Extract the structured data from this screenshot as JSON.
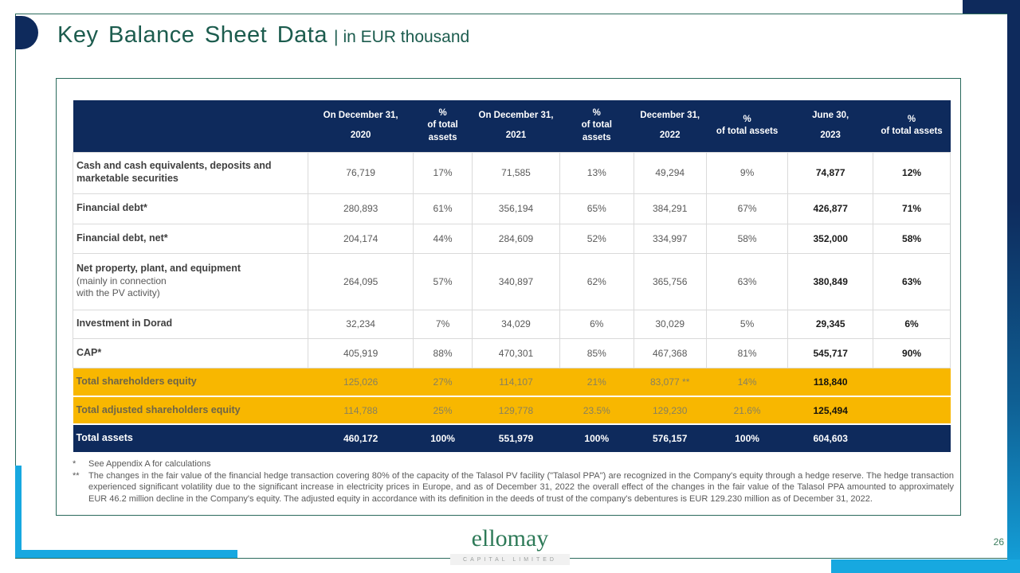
{
  "slide": {
    "title": "Key Balance Sheet Data",
    "title_separator": "|",
    "title_subtitle": "in EUR thousand",
    "page_number": "26"
  },
  "logo": {
    "name": "ellomay",
    "tagline": "CAPITAL LIMITED"
  },
  "colors": {
    "navy": "#0e2a5c",
    "gold": "#f8b700",
    "cyan": "#17a8e0",
    "title_green": "#1c5c4e",
    "border_teal": "#2a6a5c"
  },
  "table": {
    "header": [
      {
        "lines": [
          ""
        ]
      },
      {
        "lines": [
          "On December 31,",
          "2020"
        ]
      },
      {
        "lines": [
          "%",
          "of total",
          "assets"
        ]
      },
      {
        "lines": [
          "On December 31,",
          "2021"
        ]
      },
      {
        "lines": [
          "%",
          "of total",
          "assets"
        ]
      },
      {
        "lines": [
          "December 31,",
          "2022"
        ]
      },
      {
        "lines": [
          "%",
          "of total assets"
        ]
      },
      {
        "lines": [
          "June 30,",
          "2023"
        ]
      },
      {
        "lines": [
          "%",
          "of total assets"
        ]
      }
    ],
    "rows": [
      {
        "style": "regular",
        "height": "h52",
        "label": "Cash and cash equivalents, deposits and marketable securities",
        "values": [
          "76,719",
          "17%",
          "71,585",
          "13%",
          "49,294",
          "9%",
          "74,877",
          "12%"
        ]
      },
      {
        "style": "regular",
        "height": "h38",
        "label": "Financial debt*",
        "values": [
          "280,893",
          "61%",
          "356,194",
          "65%",
          "384,291",
          "67%",
          "426,877",
          "71%"
        ]
      },
      {
        "style": "regular",
        "height": "h37",
        "label": "Financial debt, net*",
        "values": [
          "204,174",
          "44%",
          "284,609",
          "52%",
          "334,997",
          "58%",
          "352,000",
          "58%"
        ]
      },
      {
        "style": "regular",
        "height": "h71",
        "label": "Net property, plant, and equipment",
        "sublabel1": "(mainly in connection",
        "sublabel2": "with the PV activity)",
        "values": [
          "264,095",
          "57%",
          "340,897",
          "62%",
          "365,756",
          "63%",
          "380,849",
          "63%"
        ]
      },
      {
        "style": "regular",
        "height": "h36",
        "label": "Investment in Dorad",
        "values": [
          "32,234",
          "7%",
          "34,029",
          "6%",
          "30,029",
          "5%",
          "29,345",
          "6%"
        ]
      },
      {
        "style": "regular",
        "height": "h37",
        "label": "CAP*",
        "values": [
          "405,919",
          "88%",
          "470,301",
          "85%",
          "467,368",
          "81%",
          "545,717",
          "90%"
        ]
      },
      {
        "style": "gold",
        "height": "h36",
        "label": "Total shareholders equity",
        "values": [
          "125,026",
          "27%",
          "114,107",
          "21%",
          "83,077 **",
          "14%",
          "118,840",
          ""
        ]
      },
      {
        "style": "gold",
        "height": "h35",
        "label": "Total adjusted shareholders equity",
        "values": [
          "114,788",
          "25%",
          "129,778",
          "23.5%",
          "129,230",
          "21.6%",
          "125,494",
          ""
        ]
      },
      {
        "style": "navy",
        "height": "h33",
        "label": "Total assets",
        "values": [
          "460,172",
          "100%",
          "551,979",
          "100%",
          "576,157",
          "100%",
          "604,603",
          ""
        ]
      }
    ]
  },
  "footnotes": [
    {
      "marker": "*",
      "text": "See Appendix A for calculations"
    },
    {
      "marker": "**",
      "text": "The changes in the fair value of the financial hedge transaction covering 80% of the capacity of the Talasol PV facility (\"Talasol PPA\") are recognized in the Company's equity through a hedge reserve. The hedge transaction experienced significant volatility due to the significant increase in electricity prices in Europe, and as of December 31, 2022 the overall effect of the changes in the fair value of the Talasol PPA amounted to approximately EUR 46.2 million decline in the Company's equity. The adjusted equity in accordance with its definition in the deeds of trust of the company's debentures is EUR 129.230 million as of December 31, 2022."
    }
  ]
}
